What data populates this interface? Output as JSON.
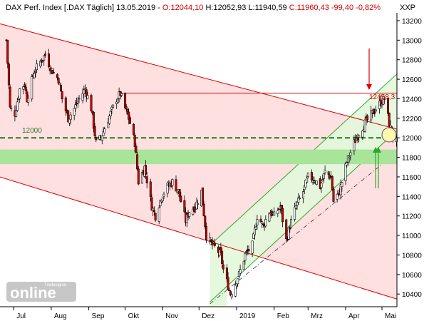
{
  "header": {
    "prefix": "DAX Perf. Index [.DAX  Täglich] 13.05.2019 - ",
    "open": "O:12044,10",
    "high": "H:12052,93",
    "low": "L:11940,59",
    "close": "C:11960,43",
    "change": "-99,40",
    "change_pct": "-0,82%",
    "unit": "XXP"
  },
  "annotations": {
    "level_12000": "12000",
    "level_12458": "12458,3"
  },
  "logo": {
    "brand": "online",
    "tagline": "Tradesignal"
  },
  "colors": {
    "up": "#ffffff",
    "down": "#d00000",
    "wick": "#000000",
    "pink_channel": "#ffe0e0",
    "green_channel": "#e2f8dc",
    "green_band": "#a8e49a",
    "red_line": "#e00000",
    "green_line": "#2ea82e",
    "dash": "#1e7a1e"
  },
  "chart_data": {
    "type": "candlestick",
    "x_months": [
      "Jul",
      "Aug",
      "Sep",
      "Okt",
      "Nov",
      "Dez",
      "2019",
      "Feb",
      "Mrz",
      "Apr",
      "Mai"
    ],
    "y_ticks": [
      10400,
      10600,
      10800,
      11000,
      11200,
      11400,
      11600,
      11800,
      12000,
      12200,
      12400,
      12600,
      12800,
      13000,
      13200
    ],
    "ylim": [
      10270,
      13280
    ],
    "anchors": [
      [
        "2018-06-25",
        13000
      ],
      [
        "2018-06-28",
        12300
      ],
      [
        "2018-07-02",
        12250
      ],
      [
        "2018-07-06",
        12500
      ],
      [
        "2018-07-10",
        12550
      ],
      [
        "2018-07-12",
        12400
      ],
      [
        "2018-07-18",
        12680
      ],
      [
        "2018-07-24",
        12800
      ],
      [
        "2018-07-27",
        12850
      ],
      [
        "2018-08-01",
        12700
      ],
      [
        "2018-08-07",
        12600
      ],
      [
        "2018-08-10",
        12400
      ],
      [
        "2018-08-15",
        12200
      ],
      [
        "2018-08-20",
        12300
      ],
      [
        "2018-08-24",
        12400
      ],
      [
        "2018-08-29",
        12500
      ],
      [
        "2018-09-03",
        12300
      ],
      [
        "2018-09-07",
        11950
      ],
      [
        "2018-09-11",
        12000
      ],
      [
        "2018-09-14",
        12100
      ],
      [
        "2018-09-19",
        12250
      ],
      [
        "2018-09-24",
        12400
      ],
      [
        "2018-09-27",
        12450
      ],
      [
        "2018-10-01",
        12300
      ],
      [
        "2018-10-04",
        12200
      ],
      [
        "2018-10-09",
        11950
      ],
      [
        "2018-10-12",
        11550
      ],
      [
        "2018-10-17",
        11700
      ],
      [
        "2018-10-23",
        11300
      ],
      [
        "2018-10-26",
        11200
      ],
      [
        "2018-10-31",
        11400
      ],
      [
        "2018-11-05",
        11500
      ],
      [
        "2018-11-09",
        11550
      ],
      [
        "2018-11-14",
        11450
      ],
      [
        "2018-11-20",
        11150
      ],
      [
        "2018-11-23",
        11250
      ],
      [
        "2018-11-28",
        11300
      ],
      [
        "2018-12-03",
        11450
      ],
      [
        "2018-12-07",
        11000
      ],
      [
        "2018-12-12",
        10900
      ],
      [
        "2018-12-14",
        10880
      ],
      [
        "2018-12-19",
        10800
      ],
      [
        "2018-12-21",
        10650
      ],
      [
        "2018-12-27",
        10400
      ],
      [
        "2019-01-03",
        10600
      ],
      [
        "2019-01-08",
        10800
      ],
      [
        "2019-01-14",
        10900
      ],
      [
        "2019-01-18",
        11200
      ],
      [
        "2019-01-23",
        11100
      ],
      [
        "2019-01-28",
        11250
      ],
      [
        "2019-02-01",
        11200
      ],
      [
        "2019-02-06",
        11300
      ],
      [
        "2019-02-11",
        10950
      ],
      [
        "2019-02-14",
        11100
      ],
      [
        "2019-02-19",
        11300
      ],
      [
        "2019-02-25",
        11450
      ],
      [
        "2019-03-01",
        11600
      ],
      [
        "2019-03-06",
        11580
      ],
      [
        "2019-03-11",
        11500
      ],
      [
        "2019-03-15",
        11650
      ],
      [
        "2019-03-20",
        11600
      ],
      [
        "2019-03-22",
        11350
      ],
      [
        "2019-03-27",
        11450
      ],
      [
        "2019-04-02",
        11750
      ],
      [
        "2019-04-08",
        11950
      ],
      [
        "2019-04-12",
        12050
      ],
      [
        "2019-04-17",
        12150
      ],
      [
        "2019-04-23",
        12250
      ],
      [
        "2019-04-29",
        12350
      ],
      [
        "2019-05-03",
        12400
      ],
      [
        "2019-05-07",
        12150
      ],
      [
        "2019-05-10",
        12000
      ],
      [
        "2019-05-13",
        11960
      ]
    ],
    "levels": [
      {
        "kind": "horizontal-line",
        "value": 12458.3,
        "from": "2018-09-25",
        "to": "2019-05-13",
        "color": "red"
      },
      {
        "kind": "dashed-line",
        "value": 12000,
        "color": "dark-green"
      },
      {
        "kind": "support-band",
        "from_value": 11730,
        "to_value": 11880,
        "color": "green"
      }
    ],
    "channels": [
      {
        "name": "down-channel",
        "color": "red",
        "upper": [
          [
            "2018-06-22",
            13160
          ],
          [
            "2019-05-10",
            12100
          ]
        ],
        "lower": [
          [
            "2018-06-22",
            11590
          ],
          [
            "2019-05-13",
            10350
          ]
        ]
      },
      {
        "name": "up-channel",
        "color": "green",
        "lower": [
          [
            "2018-12-10",
            10320
          ],
          [
            "2019-05-13",
            12070
          ]
        ],
        "upper": [
          [
            "2018-12-10",
            10900
          ],
          [
            "2019-05-13",
            12650
          ]
        ],
        "mid": [
          [
            "2018-12-10",
            10300
          ],
          [
            "2019-05-13",
            11850
          ]
        ]
      }
    ]
  }
}
